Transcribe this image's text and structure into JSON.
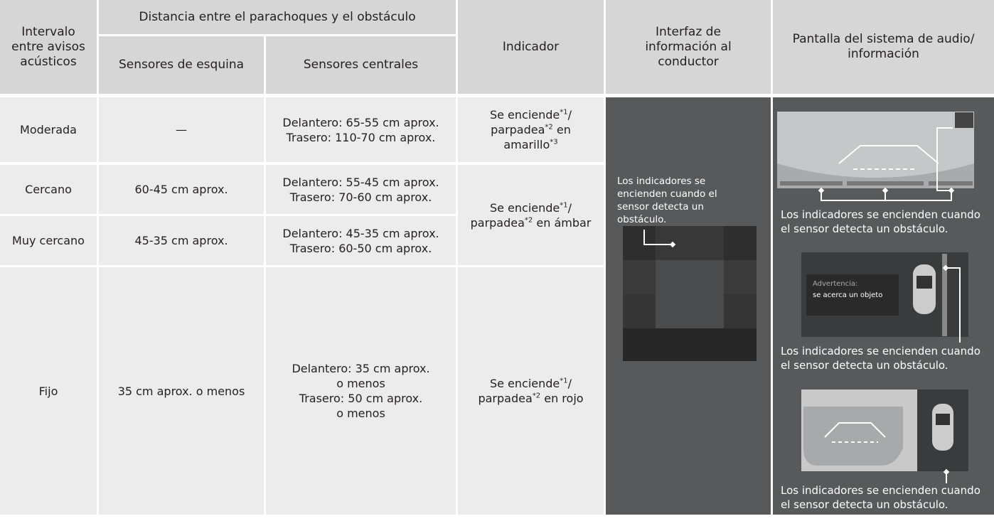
{
  "table": {
    "header": {
      "interval": "Intervalo entre avisos acústicos",
      "distance": "Distancia entre el parachoques y el obstáculo",
      "corner": "Sensores de esquina",
      "center": "Sensores centrales",
      "indicator": "Indicador",
      "driver_info": "Interfaz de información al conductor",
      "audio": "Pantalla del sistema de audio/ información"
    },
    "rows": [
      {
        "interval": "Moderada",
        "corner": "—",
        "center": [
          "Delantero: 65-55 cm aprox.",
          "Trasero: 110-70 cm aprox."
        ]
      },
      {
        "interval": "Cercano",
        "corner": "60-45 cm aprox.",
        "center": [
          "Delantero: 55-45 cm aprox.",
          "Trasero: 70-60 cm aprox."
        ]
      },
      {
        "interval": "Muy cercano",
        "corner": "45-35 cm aprox.",
        "center": [
          "Delantero: 45-35 cm aprox.",
          "Trasero: 60-50 cm aprox."
        ]
      },
      {
        "interval": "Fijo",
        "corner": "35 cm aprox. o menos",
        "center": [
          "Delantero: 35 cm aprox.",
          "o menos",
          "Trasero: 50 cm aprox.",
          "o menos"
        ]
      }
    ],
    "indicators": [
      [
        "Se enciende",
        "*1",
        "/ parpadea",
        "*2",
        " en amarillo",
        "*3"
      ],
      [
        "Se enciende",
        "*1",
        "/ parpadea",
        "*2",
        " en ámbar"
      ],
      [
        "Se enciende",
        "*1",
        "/ parpadea",
        "*2",
        " en rojo"
      ]
    ],
    "driver_info_caption": "Los indicadores se encienden cuando el sensor detecta un obstáculo.",
    "audio_captions": [
      "Los indicadores se encienden cuando el sensor detecta un obstáculo.",
      "Los indicadores se encienden cuando el sensor detecta un obstáculo.",
      "Los indicadores se encienden cuando el sensor detecta un obstáculo."
    ],
    "warning": {
      "title": "Advertencia:",
      "text": "se acerca un objeto"
    }
  }
}
